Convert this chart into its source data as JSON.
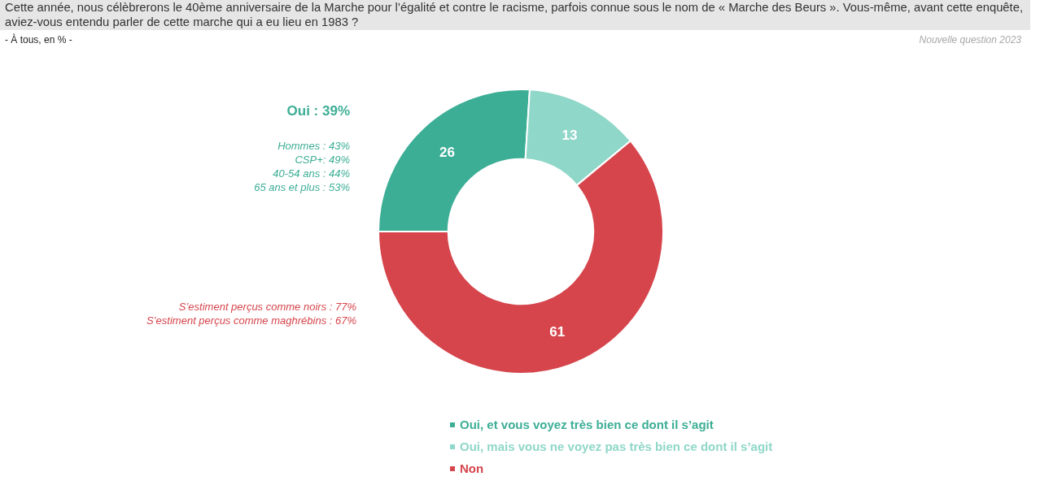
{
  "chart_data": {
    "type": "donut",
    "title": "Cette année, nous célèbrerons le 40ème anniversaire de la Marche pour l’égalité et contre le racisme, parfois connue sous le nom de « Marche des Beurs ». Vous-même, avant cette enquête, aviez-vous entendu parler de cette marche qui a eu lieu en 1983 ?",
    "subtitle": "- À tous, en % -",
    "categories": [
      "Oui, et vous voyez très bien ce dont il s’agit",
      "Oui, mais vous ne voyez pas très bien ce dont il s’agit",
      "Non"
    ],
    "values": [
      26,
      13,
      61
    ],
    "colors": [
      "#3dae96",
      "#8fd7c8",
      "#d6454c"
    ],
    "data_labels": true,
    "legend": "bottom",
    "annotations": [
      "Nouvelle question 2023",
      "Oui : 39%",
      "Hommes : 43%",
      "CSP+: 49%",
      "40-54 ans : 44%",
      "65 ans et plus : 53%",
      "S’estiment perçus comme noirs : 77%",
      "S’estiment perçus comme maghrébins : 67%"
    ]
  }
}
